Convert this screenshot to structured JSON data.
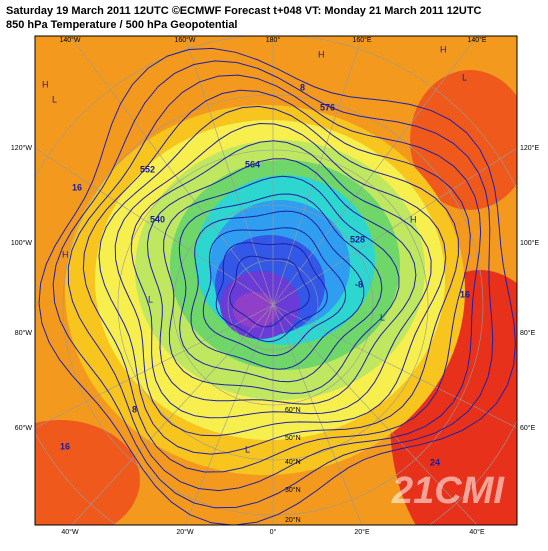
{
  "header": {
    "title": "Saturday 19 March 2011 12UTC ©ECMWF Forecast t+048 VT: Monday 21 March 2011 12UTC",
    "subtitle": "850 hPa Temperature / 500 hPa Geopotential"
  },
  "map": {
    "longitude_labels": {
      "top": [
        "140°W",
        "160°W",
        "180°",
        "160°E",
        "140°E"
      ],
      "bottom": [
        "40°W",
        "20°W",
        "0°",
        "20°E",
        "40°E"
      ],
      "left": [
        "120°W",
        "100°W",
        "80°W",
        "60°W"
      ],
      "right": [
        "120°E",
        "100°E",
        "80°E",
        "60°E"
      ]
    },
    "latitude_labels": [
      "60°N",
      "50°N",
      "40°N",
      "30°N",
      "20°N"
    ],
    "contour_labels": [
      "576",
      "564",
      "552",
      "540",
      "528",
      "16",
      "8",
      "-8",
      "24",
      "16",
      "8",
      "16"
    ],
    "pressure_labels": [
      "H",
      "H",
      "H",
      "L",
      "L",
      "L",
      "H",
      "L",
      "H",
      "L"
    ],
    "watermark": "21CMI"
  }
}
